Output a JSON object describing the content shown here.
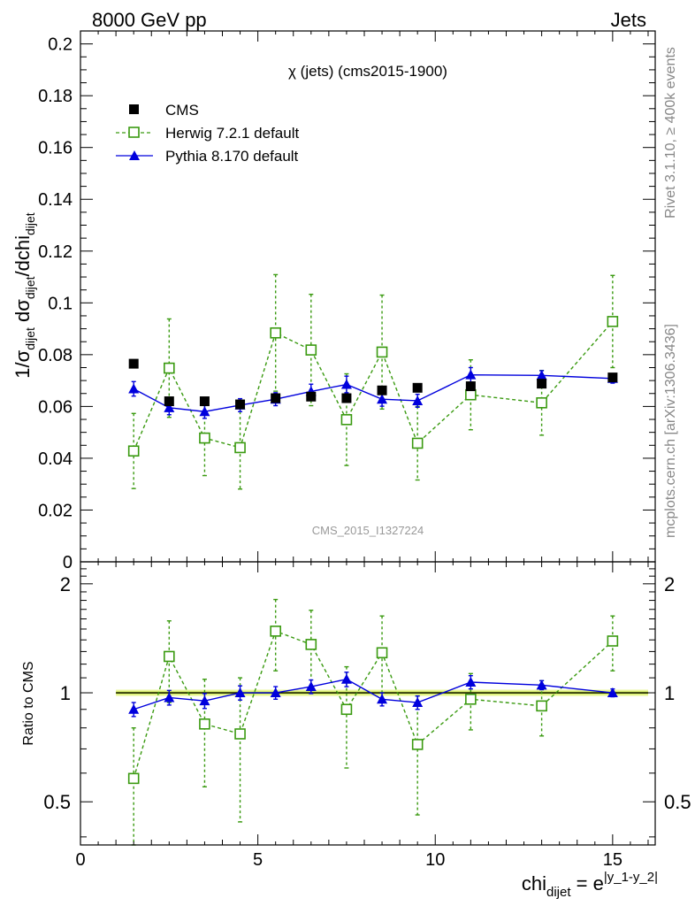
{
  "header": {
    "left": "8000 GeV pp",
    "right": "Jets"
  },
  "side": {
    "rivet": "Rivet 3.1.10, ≥ 400k events",
    "mcplots": "mcplots.cern.ch [arXiv:1306.3436]"
  },
  "chart_data": {
    "type": "line",
    "title": "χ (jets) (cms2015-1900)",
    "watermark": "CMS_2015_I1327224",
    "ylabel_main": "1/σ_dijet dσ_dijet/dchi_dijet",
    "ylabel_ratio": "Ratio to CMS",
    "xlabel": "chi_dijet = e^|y_1-y_2|",
    "xlim": [
      0,
      16.2
    ],
    "ylim_main": [
      0,
      0.205
    ],
    "ylim_ratio": [
      0.38,
      2.3
    ],
    "ratio_scale": "log",
    "xticks": [
      "0",
      "5",
      "10",
      "15"
    ],
    "yticks_main": [
      "0",
      "0.02",
      "0.04",
      "0.06",
      "0.08",
      "0.1",
      "0.12",
      "0.14",
      "0.16",
      "0.18",
      "0.2"
    ],
    "yticks_ratio": [
      "0.5",
      "1",
      "2"
    ],
    "legend_position": "top-left",
    "legend": [
      "CMS",
      "Herwig 7.2.1 default",
      "Pythia 8.170 default"
    ],
    "colors": {
      "data": "#000000",
      "herwig": "#3a9a10",
      "pythia": "#0000dd",
      "band_outer": "#eaf79a",
      "band_inner": "#c8e83a"
    },
    "x": [
      1.5,
      2.5,
      3.5,
      4.5,
      5.5,
      6.5,
      7.5,
      8.5,
      9.5,
      11.0,
      13.0,
      15.0
    ],
    "series": [
      {
        "name": "CMS",
        "values": [
          0.0765,
          0.062,
          0.062,
          0.0608,
          0.0632,
          0.0638,
          0.0632,
          0.0662,
          0.0672,
          0.0678,
          0.0688,
          0.0712
        ],
        "errors": [
          0.001,
          0.001,
          0.001,
          0.001,
          0.001,
          0.001,
          0.001,
          0.001,
          0.001,
          0.001,
          0.001,
          0.001
        ]
      },
      {
        "name": "Herwig 7.2.1 default",
        "values": [
          0.0428,
          0.0748,
          0.0478,
          0.0441,
          0.0884,
          0.0818,
          0.0549,
          0.081,
          0.0458,
          0.0645,
          0.0614,
          0.0928
        ],
        "errors": [
          0.0145,
          0.019,
          0.0145,
          0.016,
          0.0225,
          0.0215,
          0.0177,
          0.022,
          0.0142,
          0.0135,
          0.0125,
          0.0178
        ],
        "ratio": [
          0.58,
          1.26,
          0.82,
          0.77,
          1.48,
          1.36,
          0.9,
          1.29,
          0.72,
          0.96,
          0.92,
          1.39
        ],
        "ratio_errors": [
          0.22,
          0.32,
          0.27,
          0.33,
          0.33,
          0.33,
          0.28,
          0.34,
          0.26,
          0.17,
          0.16,
          0.24
        ]
      },
      {
        "name": "Pythia 8.170 default",
        "values": [
          0.0668,
          0.0595,
          0.058,
          0.0605,
          0.0628,
          0.0658,
          0.0685,
          0.0628,
          0.0622,
          0.0722,
          0.072,
          0.0708
        ],
        "errors": [
          0.0028,
          0.0027,
          0.0026,
          0.0025,
          0.0025,
          0.0028,
          0.0032,
          0.0027,
          0.0025,
          0.0028,
          0.0018,
          0.0018
        ],
        "ratio": [
          0.9,
          0.97,
          0.95,
          1.0,
          1.0,
          1.04,
          1.09,
          0.96,
          0.94,
          1.07,
          1.05,
          1.0
        ],
        "ratio_errors": [
          0.04,
          0.045,
          0.045,
          0.045,
          0.04,
          0.045,
          0.05,
          0.04,
          0.04,
          0.045,
          0.03,
          0.025
        ]
      }
    ]
  }
}
